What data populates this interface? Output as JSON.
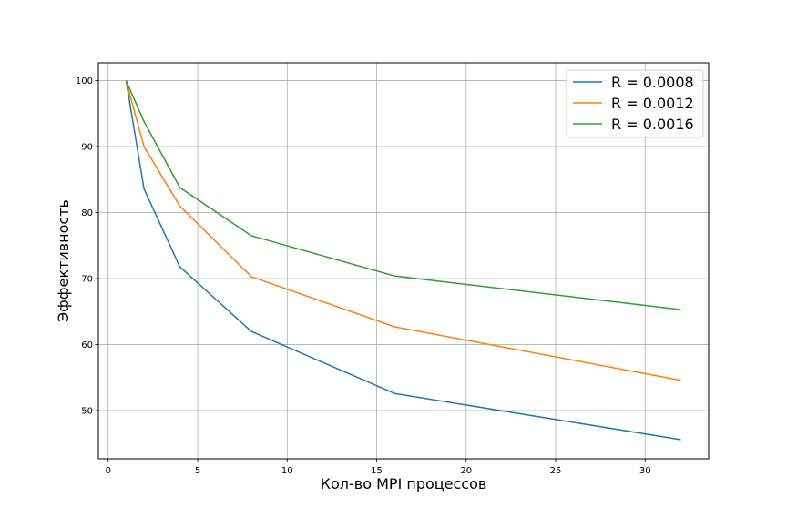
{
  "chart_data": {
    "type": "line",
    "title": "",
    "xlabel": "Кол-во MPI процессов",
    "ylabel": "Эффективность",
    "xlim": [
      -0.55,
      33.55
    ],
    "ylim": [
      42.7,
      102.7
    ],
    "xticks": [
      0,
      5,
      10,
      15,
      20,
      25,
      30
    ],
    "yticks": [
      50,
      60,
      70,
      80,
      90,
      100
    ],
    "grid": true,
    "legend_position": "top-right",
    "x": [
      1,
      2,
      4,
      8,
      16,
      32
    ],
    "series": [
      {
        "name": "R = 0.0008",
        "color": "#1f77b4",
        "values": [
          100,
          83.6,
          71.8,
          62.0,
          52.6,
          45.6
        ]
      },
      {
        "name": "R = 0.0012",
        "color": "#ff7f0e",
        "values": [
          100,
          90.0,
          81.0,
          70.3,
          62.7,
          54.6
        ]
      },
      {
        "name": "R = 0.0016",
        "color": "#2ca02c",
        "values": [
          100,
          93.8,
          83.8,
          76.5,
          70.4,
          65.3
        ]
      }
    ]
  }
}
